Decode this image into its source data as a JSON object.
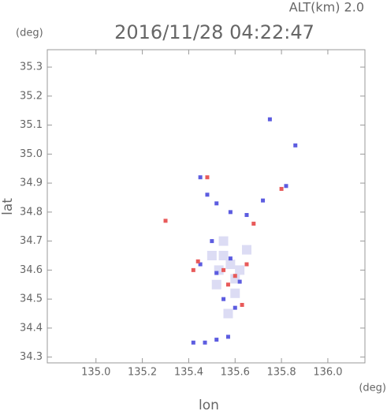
{
  "chart_data": {
    "type": "scatter",
    "title": "2016/11/28 04:22:47",
    "subtitle": "ALT(km) 2.0",
    "xlabel": "lon",
    "ylabel": "lat",
    "xunit": "(deg)",
    "yunit": "(deg)",
    "xlim": [
      134.79,
      136.16
    ],
    "ylim": [
      34.28,
      35.36
    ],
    "xticks": [
      {
        "value": 135.0,
        "label": "135.0"
      },
      135.2,
      135.4,
      135.6,
      135.8,
      {
        "value": 136.0,
        "label": "136.0"
      }
    ],
    "yticks": [
      34.3,
      34.4,
      34.5,
      34.6,
      34.7,
      34.8,
      34.9,
      {
        "value": 35.0,
        "label": "35.0"
      },
      35.1,
      35.2,
      35.3
    ],
    "series": [
      {
        "color": "#dcdcf4",
        "x": [
          135.55,
          135.58,
          135.52,
          135.6,
          135.55,
          135.5,
          135.62,
          135.57,
          135.65,
          135.53,
          135.6
        ],
        "y": [
          34.65,
          34.62,
          34.55,
          34.52,
          34.7,
          34.65,
          34.6,
          34.45,
          34.67,
          34.6,
          34.57
        ]
      },
      {
        "color": "#5c5ce0",
        "x": [
          135.75,
          135.86,
          135.45,
          135.48,
          135.52,
          135.58,
          135.65,
          135.72,
          135.82,
          135.5,
          135.45,
          135.52,
          135.58,
          135.55,
          135.6,
          135.42,
          135.47,
          135.52,
          135.57,
          135.62
        ],
        "y": [
          35.12,
          35.03,
          34.92,
          34.86,
          34.83,
          34.8,
          34.79,
          34.84,
          34.89,
          34.7,
          34.62,
          34.59,
          34.64,
          34.5,
          34.47,
          34.35,
          34.35,
          34.36,
          34.37,
          34.56
        ]
      },
      {
        "color": "#e85a5a",
        "x": [
          135.3,
          135.8,
          135.48,
          135.55,
          135.6,
          135.65,
          135.57,
          135.63,
          135.44,
          135.68,
          135.42
        ],
        "y": [
          34.77,
          34.88,
          34.92,
          34.6,
          34.58,
          34.62,
          34.55,
          34.48,
          34.63,
          34.76,
          34.6
        ]
      }
    ]
  }
}
